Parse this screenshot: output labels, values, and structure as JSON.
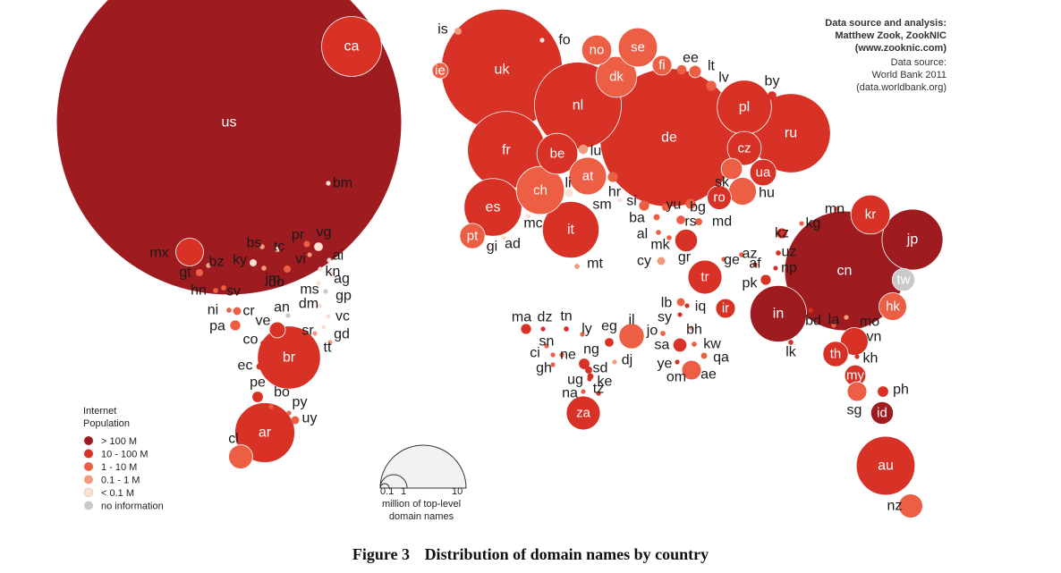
{
  "caption": {
    "number": "Figure 3",
    "title": "Distribution of domain names by country"
  },
  "source_note": {
    "lines_bold": [
      "Data source and analysis:",
      "Matthew Zook, ZookNIC",
      "(www.zooknic.com)"
    ],
    "lines": [
      "Data source:",
      "World Bank 2011",
      "(data.worldbank.org)"
    ]
  },
  "legend": {
    "title_lines": [
      "Internet",
      "Population"
    ],
    "items": [
      {
        "key": "c5",
        "label": "> 100 M"
      },
      {
        "key": "c4",
        "label": "10 - 100 M"
      },
      {
        "key": "c3",
        "label": "1 - 10 M"
      },
      {
        "key": "c2",
        "label": "0.1 - 1 M"
      },
      {
        "key": "c1",
        "label": "< 0.1 M"
      },
      {
        "key": "c0",
        "label": "no information"
      }
    ]
  },
  "size_legend": {
    "ticks": [
      "0.1",
      "1",
      "10"
    ],
    "label_lines": [
      "million of top-level",
      "domain names"
    ]
  },
  "colors": {
    "c5": "#9e1b20",
    "c4": "#d83226",
    "c3": "#ec5f45",
    "c2": "#f19a7c",
    "c1": "#fbe0d4",
    "c0": "#c9c9c9"
  },
  "chart_data": {
    "type": "bubble-map",
    "size_scale_unit": "million of top-level domain names",
    "size_scale_ticks": [
      0.1,
      1,
      10
    ],
    "color_variable": "Internet Population",
    "countries": [
      {
        "code": "us",
        "cat": "c5",
        "domains": 93
      },
      {
        "code": "ca",
        "cat": "c4",
        "domains": 2.8
      },
      {
        "code": "bm",
        "cat": "c1",
        "domains": 0.01
      },
      {
        "code": "mx",
        "cat": "c4",
        "domains": 0.6
      },
      {
        "code": "gt",
        "cat": "c3",
        "domains": 0.04
      },
      {
        "code": "bz",
        "cat": "c2",
        "domains": 0.02
      },
      {
        "code": "hn",
        "cat": "c3",
        "domains": 0.02
      },
      {
        "code": "sv",
        "cat": "c3",
        "domains": 0.02
      },
      {
        "code": "ni",
        "cat": "c3",
        "domains": 0.02
      },
      {
        "code": "cr",
        "cat": "c3",
        "domains": 0.05
      },
      {
        "code": "pa",
        "cat": "c3",
        "domains": 0.08
      },
      {
        "code": "bs",
        "cat": "c2",
        "domains": 0.02
      },
      {
        "code": "ky",
        "cat": "c1",
        "domains": 0.04
      },
      {
        "code": "jm",
        "cat": "c2",
        "domains": 0.02
      },
      {
        "code": "tc",
        "cat": "c1",
        "domains": 0.02
      },
      {
        "code": "pr",
        "cat": "c3",
        "domains": 0.03
      },
      {
        "code": "vi",
        "cat": "c2",
        "domains": 0.01
      },
      {
        "code": "vg",
        "cat": "c1",
        "domains": 0.06
      },
      {
        "code": "ai",
        "cat": "c1",
        "domains": 0.01
      },
      {
        "code": "do",
        "cat": "c3",
        "domains": 0.04
      },
      {
        "code": "kn",
        "cat": "c1",
        "domains": 0.01
      },
      {
        "code": "ag",
        "cat": "c1",
        "domains": 0.01
      },
      {
        "code": "ms",
        "cat": "c1",
        "domains": 0.01
      },
      {
        "code": "gp",
        "cat": "c0",
        "domains": 0.01
      },
      {
        "code": "an",
        "cat": "c0",
        "domains": 0.01
      },
      {
        "code": "dm",
        "cat": "c1",
        "domains": 0.01
      },
      {
        "code": "vc",
        "cat": "c1",
        "domains": 0.01
      },
      {
        "code": "ve",
        "cat": "c4",
        "domains": 0.2
      },
      {
        "code": "co",
        "cat": "c4",
        "domains": 0.02
      },
      {
        "code": "sr",
        "cat": "c2",
        "domains": 0.01
      },
      {
        "code": "gd",
        "cat": "c1",
        "domains": 0.01
      },
      {
        "code": "tt",
        "cat": "c2",
        "domains": 0.01
      },
      {
        "code": "br",
        "cat": "c4",
        "domains": 3.1
      },
      {
        "code": "ec",
        "cat": "c4",
        "domains": 0.03
      },
      {
        "code": "pe",
        "cat": "c4",
        "domains": 0.1
      },
      {
        "code": "bo",
        "cat": "c3",
        "domains": 0.01
      },
      {
        "code": "py",
        "cat": "c3",
        "domains": 0.01
      },
      {
        "code": "uy",
        "cat": "c3",
        "domains": 0.05
      },
      {
        "code": "cl",
        "cat": "c3",
        "domains": 0.45
      },
      {
        "code": "ar",
        "cat": "c4",
        "domains": 2.8
      },
      {
        "code": "is",
        "cat": "c2",
        "domains": 0.04
      },
      {
        "code": "fo",
        "cat": "c1",
        "domains": 0.01
      },
      {
        "code": "ie",
        "cat": "c3",
        "domains": 0.2
      },
      {
        "code": "uk",
        "cat": "c4",
        "domains": 11.5
      },
      {
        "code": "no",
        "cat": "c3",
        "domains": 0.7
      },
      {
        "code": "se",
        "cat": "c3",
        "domains": 1.2
      },
      {
        "code": "dk",
        "cat": "c3",
        "domains": 1.3
      },
      {
        "code": "fi",
        "cat": "c3",
        "domains": 0.3
      },
      {
        "code": "ee",
        "cat": "c3",
        "domains": 0.07
      },
      {
        "code": "lt",
        "cat": "c3",
        "domains": 0.12
      },
      {
        "code": "lv",
        "cat": "c3",
        "domains": 0.08
      },
      {
        "code": "by",
        "cat": "c4",
        "domains": 0.06
      },
      {
        "code": "nl",
        "cat": "c4",
        "domains": 5.9
      },
      {
        "code": "de",
        "cat": "c4",
        "domains": 15
      },
      {
        "code": "pl",
        "cat": "c4",
        "domains": 2.3
      },
      {
        "code": "ru",
        "cat": "c4",
        "domains": 4.9
      },
      {
        "code": "fr",
        "cat": "c4",
        "domains": 4.7
      },
      {
        "code": "be",
        "cat": "c4",
        "domains": 1.3
      },
      {
        "code": "lu",
        "cat": "c2",
        "domains": 0.07
      },
      {
        "code": "at",
        "cat": "c3",
        "domains": 1.1
      },
      {
        "code": "li",
        "cat": "c1",
        "domains": 0.05
      },
      {
        "code": "ch",
        "cat": "c3",
        "domains": 1.8
      },
      {
        "code": "cz",
        "cat": "c4",
        "domains": 0.9
      },
      {
        "code": "sk",
        "cat": "c3",
        "domains": 0.35
      },
      {
        "code": "ua",
        "cat": "c4",
        "domains": 0.55
      },
      {
        "code": "hu",
        "cat": "c3",
        "domains": 0.6
      },
      {
        "code": "hr",
        "cat": "c3",
        "domains": 0.08
      },
      {
        "code": "si",
        "cat": "c3",
        "domains": 0.08
      },
      {
        "code": "sm",
        "cat": "c1",
        "domains": 0.01
      },
      {
        "code": "es",
        "cat": "c4",
        "domains": 2.6
      },
      {
        "code": "pt",
        "cat": "c3",
        "domains": 0.5
      },
      {
        "code": "mc",
        "cat": "c1",
        "domains": 0.01
      },
      {
        "code": "gi",
        "cat": "c1",
        "domains": 0.01
      },
      {
        "code": "ad",
        "cat": "c1",
        "domains": 0.01
      },
      {
        "code": "it",
        "cat": "c4",
        "domains": 2.5
      },
      {
        "code": "mt",
        "cat": "c2",
        "domains": 0.02
      },
      {
        "code": "yu",
        "cat": "c3",
        "domains": 0.04
      },
      {
        "code": "bg",
        "cat": "c3",
        "domains": 0.08
      },
      {
        "code": "ro",
        "cat": "c4",
        "domains": 0.45
      },
      {
        "code": "ba",
        "cat": "c3",
        "domains": 0.03
      },
      {
        "code": "rs",
        "cat": "c3",
        "domains": 0.06
      },
      {
        "code": "md",
        "cat": "c3",
        "domains": 0.04
      },
      {
        "code": "al",
        "cat": "c3",
        "domains": 0.02
      },
      {
        "code": "mk",
        "cat": "c3",
        "domains": 0.02
      },
      {
        "code": "gr",
        "cat": "c4",
        "domains": 0.4
      },
      {
        "code": "cy",
        "cat": "c2",
        "domains": 0.05
      },
      {
        "code": "tr",
        "cat": "c4",
        "domains": 0.9
      },
      {
        "code": "ge",
        "cat": "c3",
        "domains": 0.01
      },
      {
        "code": "az",
        "cat": "c3",
        "domains": 0.02
      },
      {
        "code": "af",
        "cat": "c4",
        "domains": 0.01
      },
      {
        "code": "pk",
        "cat": "c4",
        "domains": 0.08
      },
      {
        "code": "kz",
        "cat": "c4",
        "domains": 0.08
      },
      {
        "code": "uz",
        "cat": "c4",
        "domains": 0.02
      },
      {
        "code": "np",
        "cat": "c4",
        "domains": 0.01
      },
      {
        "code": "kg",
        "cat": "c3",
        "domains": 0.01
      },
      {
        "code": "mn",
        "cat": "c3",
        "domains": 0.02
      },
      {
        "code": "kr",
        "cat": "c4",
        "domains": 1.2
      },
      {
        "code": "jp",
        "cat": "c5",
        "domains": 2.9
      },
      {
        "code": "cn",
        "cat": "c5",
        "domains": 11.2
      },
      {
        "code": "tw",
        "cat": "c0",
        "domains": 0.4
      },
      {
        "code": "hk",
        "cat": "c3",
        "domains": 0.6
      },
      {
        "code": "in",
        "cat": "c5",
        "domains": 2.5
      },
      {
        "code": "lk",
        "cat": "c4",
        "domains": 0.02
      },
      {
        "code": "bd",
        "cat": "c4",
        "domains": 0.01
      },
      {
        "code": "la",
        "cat": "c3",
        "domains": 0.01
      },
      {
        "code": "mo",
        "cat": "c2",
        "domains": 0.01
      },
      {
        "code": "vn",
        "cat": "c4",
        "domains": 0.6
      },
      {
        "code": "th",
        "cat": "c4",
        "domains": 0.5
      },
      {
        "code": "kh",
        "cat": "c4",
        "domains": 0.01
      },
      {
        "code": "my",
        "cat": "c4",
        "domains": 0.35
      },
      {
        "code": "sg",
        "cat": "c3",
        "domains": 0.3
      },
      {
        "code": "ph",
        "cat": "c4",
        "domains": 0.1
      },
      {
        "code": "id",
        "cat": "c5",
        "domains": 0.4
      },
      {
        "code": "au",
        "cat": "c4",
        "domains": 2.7
      },
      {
        "code": "nz",
        "cat": "c3",
        "domains": 0.45
      },
      {
        "code": "lb",
        "cat": "c3",
        "domains": 0.05
      },
      {
        "code": "sy",
        "cat": "c4",
        "domains": 0.01
      },
      {
        "code": "iq",
        "cat": "c4",
        "domains": 0.01
      },
      {
        "code": "ir",
        "cat": "c4",
        "domains": 0.3
      },
      {
        "code": "il",
        "cat": "c3",
        "domains": 0.5
      },
      {
        "code": "jo",
        "cat": "c3",
        "domains": 0.02
      },
      {
        "code": "bh",
        "cat": "c2",
        "domains": 0.01
      },
      {
        "code": "sa",
        "cat": "c4",
        "domains": 0.15
      },
      {
        "code": "kw",
        "cat": "c3",
        "domains": 0.02
      },
      {
        "code": "qa",
        "cat": "c3",
        "domains": 0.03
      },
      {
        "code": "ye",
        "cat": "c4",
        "domains": 0.01
      },
      {
        "code": "om",
        "cat": "c3",
        "domains": 0.02
      },
      {
        "code": "ae",
        "cat": "c3",
        "domains": 0.3
      },
      {
        "code": "ma",
        "cat": "c4",
        "domains": 0.08
      },
      {
        "code": "dz",
        "cat": "c4",
        "domains": 0.01
      },
      {
        "code": "tn",
        "cat": "c4",
        "domains": 0.02
      },
      {
        "code": "ly",
        "cat": "c3",
        "domains": 0.01
      },
      {
        "code": "eg",
        "cat": "c4",
        "domains": 0.06
      },
      {
        "code": "sn",
        "cat": "c3",
        "domains": 0.01
      },
      {
        "code": "ci",
        "cat": "c3",
        "domains": 0.01
      },
      {
        "code": "ne",
        "cat": "c3",
        "domains": 0.01
      },
      {
        "code": "ng",
        "cat": "c4",
        "domains": 0.1
      },
      {
        "code": "gh",
        "cat": "c3",
        "domains": 0.01
      },
      {
        "code": "sd",
        "cat": "c4",
        "domains": 0.04
      },
      {
        "code": "dj",
        "cat": "c2",
        "domains": 0.01
      },
      {
        "code": "ug",
        "cat": "c4",
        "domains": 0.01
      },
      {
        "code": "ke",
        "cat": "c4",
        "domains": 0.03
      },
      {
        "code": "na",
        "cat": "c3",
        "domains": 0.01
      },
      {
        "code": "tz",
        "cat": "c4",
        "domains": 0.01
      },
      {
        "code": "za",
        "cat": "c4",
        "domains": 0.9
      }
    ]
  }
}
